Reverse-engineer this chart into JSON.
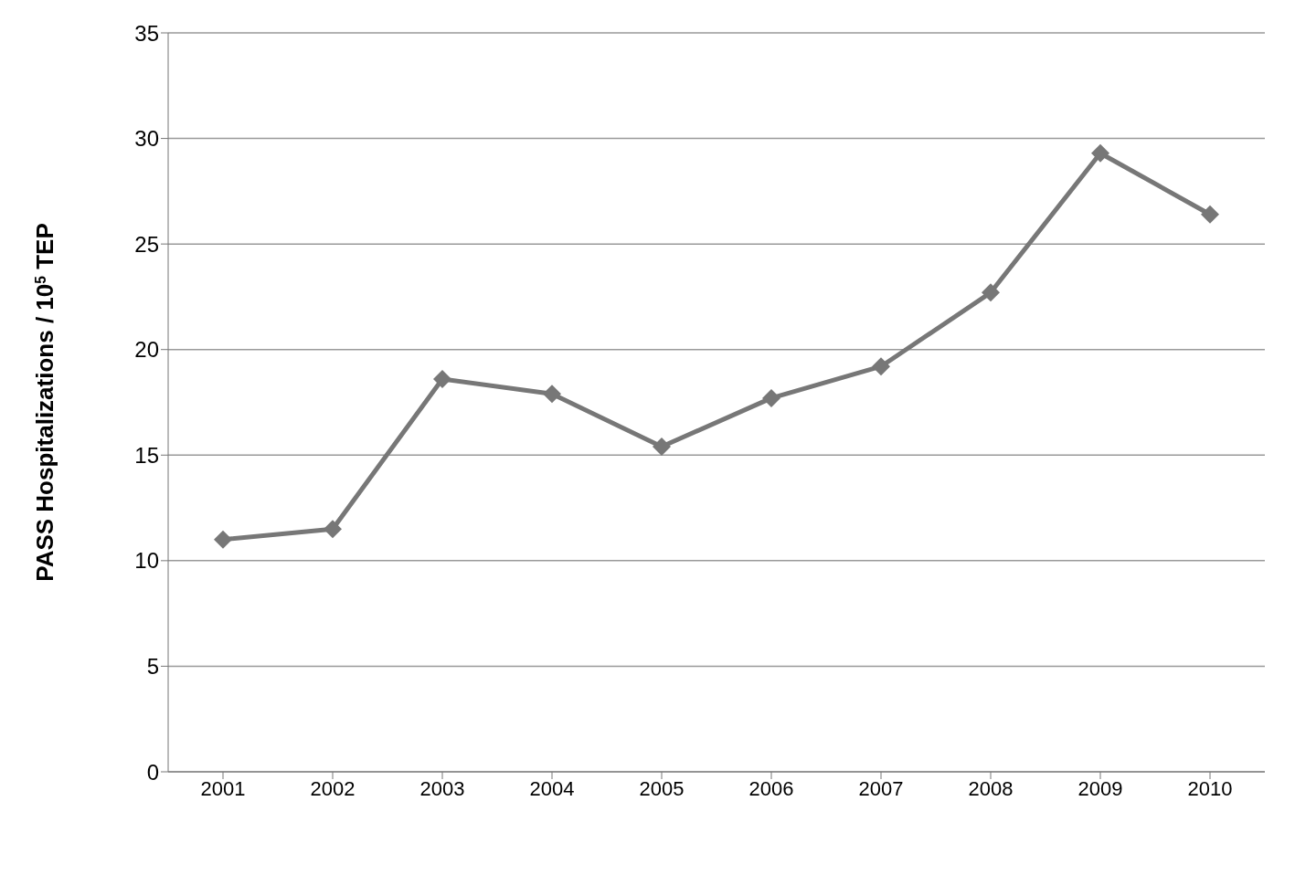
{
  "chart_data": {
    "type": "line",
    "ylabel": "PASS Hospitalizations / 10$^{5}$ TEP",
    "categories": [
      "2001",
      "2002",
      "2003",
      "2004",
      "2005",
      "2006",
      "2007",
      "2008",
      "2009",
      "2010"
    ],
    "series": [
      {
        "color": "#777777",
        "values": [
          11.0,
          11.5,
          18.6,
          17.9,
          15.4,
          17.7,
          19.2,
          22.7,
          29.3,
          26.4
        ]
      }
    ],
    "ylim": [
      0,
      35
    ],
    "yticks": [
      0,
      5,
      10,
      15,
      20,
      25,
      30,
      35
    ],
    "grid": "y",
    "legend": false,
    "marker": "diamond",
    "line_style": "solid"
  }
}
